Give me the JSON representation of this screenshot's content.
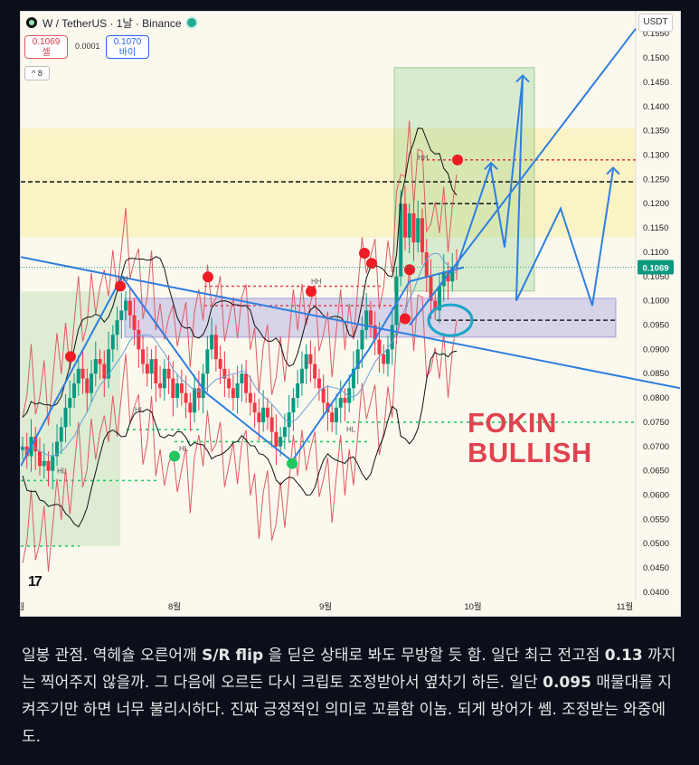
{
  "header": {
    "symbol": "W / TetherUS · 1날 · Binance",
    "sell_price": "0.1069",
    "sell_label": "셀",
    "spread": "0.0001",
    "buy_price": "0.1070",
    "buy_label": "바이",
    "indicator_count": "8",
    "currency": "USDT"
  },
  "annotation": {
    "line1": "FOKIN",
    "line2": "BULLISH"
  },
  "caption": {
    "p1": "일봉 관점. 역헤숄 오른어깨 ",
    "b1": "S/R flip",
    "p2": " 을 딛은 상태로 봐도 무방할 듯 함. 일단 최근 전고점 ",
    "b2": "0.13",
    "p3": " 까지는 찍어주지 않을까. 그 다음에 오르든 다시 크립토 조정받아서 옆차기 하든. 일단 ",
    "b3": "0.095",
    "p4": " 매물대를 지켜주기만 하면 너무 불리시하다. 진짜 긍정적인 의미로 꼬름함 이놈. 되게 방어가 쎔. 조정받는 와중에도."
  },
  "colors": {
    "up": "#089981",
    "down": "#f23645",
    "trend": "#2f7ee0",
    "bb": "#111111",
    "envelope": "#e05a63"
  },
  "chart_data": {
    "type": "candlestick",
    "title": "W / TetherUS · 1날 · Binance",
    "y_ticks": [
      "0.1550",
      "0.1500",
      "0.1450",
      "0.1400",
      "0.1350",
      "0.1300",
      "0.1250",
      "0.1200",
      "0.1150",
      "0.1100",
      "0.1050",
      "0.1000",
      "0.0950",
      "0.0900",
      "0.0850",
      "0.0800",
      "0.0750",
      "0.0700",
      "0.0650",
      "0.0600",
      "0.0550",
      "0.0500",
      "0.0450",
      "0.0400"
    ],
    "x_ticks": [
      "월",
      "8월",
      "9월",
      "10월",
      "11월"
    ],
    "ylim": [
      0.0385,
      0.1595
    ],
    "last_price": "0.1069",
    "close_prices": [
      0.07,
      0.068,
      0.072,
      0.069,
      0.066,
      0.067,
      0.065,
      0.068,
      0.071,
      0.074,
      0.078,
      0.08,
      0.083,
      0.086,
      0.084,
      0.081,
      0.085,
      0.088,
      0.087,
      0.084,
      0.09,
      0.093,
      0.096,
      0.098,
      0.1,
      0.097,
      0.094,
      0.09,
      0.087,
      0.085,
      0.088,
      0.083,
      0.082,
      0.086,
      0.084,
      0.08,
      0.083,
      0.081,
      0.079,
      0.077,
      0.082,
      0.08,
      0.085,
      0.09,
      0.093,
      0.088,
      0.086,
      0.084,
      0.082,
      0.08,
      0.083,
      0.085,
      0.081,
      0.079,
      0.077,
      0.075,
      0.078,
      0.076,
      0.073,
      0.07,
      0.072,
      0.074,
      0.077,
      0.08,
      0.083,
      0.086,
      0.089,
      0.087,
      0.084,
      0.082,
      0.079,
      0.077,
      0.075,
      0.078,
      0.08,
      0.079,
      0.082,
      0.086,
      0.09,
      0.094,
      0.098,
      0.095,
      0.092,
      0.089,
      0.087,
      0.09,
      0.095,
      0.105,
      0.12,
      0.113,
      0.118,
      0.112,
      0.117,
      0.11,
      0.105,
      0.1,
      0.098,
      0.103,
      0.106,
      0.104,
      0.107,
      0.1069
    ],
    "peak_markers": [
      0.0885,
      0.103,
      0.1049,
      0.1019,
      0.1077,
      0.1098,
      0.0963,
      0.1064,
      0.129
    ],
    "trough_markers": [
      0.068,
      0.0665
    ],
    "projection": [
      0.1069,
      0.128,
      0.11,
      0.146,
      0.1,
      0.127,
      0.118,
      0.099,
      0.126
    ],
    "zones": [
      {
        "name": "resistance",
        "from": 0.113,
        "to": 0.1355
      },
      {
        "name": "demand",
        "from": 0.0925,
        "to": 0.1005
      }
    ],
    "levels": [
      0.129,
      0.1245,
      0.12,
      0.103,
      0.099,
      0.096,
      0.075,
      0.0735,
      0.071,
      0.063,
      0.0495
    ],
    "hl_labels": [
      "HL",
      "HL",
      "HL",
      "HL",
      "HH",
      "HH",
      "HH"
    ]
  }
}
